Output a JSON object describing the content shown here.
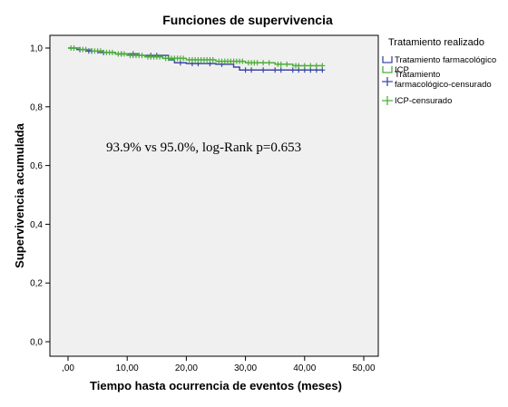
{
  "chart_data": {
    "type": "line",
    "title": "Funciones de supervivencia",
    "xlabel": "Tiempo hasta ocurrencia de eventos (meses)",
    "ylabel": "Supervivencia acumulada",
    "xlim": [
      0,
      50
    ],
    "ylim": [
      0,
      1.05
    ],
    "x_ticks": [
      ",00",
      "10,00",
      "20,00",
      "30,00",
      "40,00",
      "50,00"
    ],
    "x_tick_values": [
      0,
      10,
      20,
      30,
      40,
      50
    ],
    "y_ticks": [
      "0,0",
      "0,2",
      "0,4",
      "0,6",
      "0,8",
      "1,0"
    ],
    "y_tick_values": [
      0,
      0.2,
      0.4,
      0.6,
      0.8,
      1.0
    ],
    "annotation": "93.9% vs 95.0%, log-Rank p=0.653",
    "legend": {
      "title": "Tratamiento realizado",
      "placement": "right",
      "entries": [
        {
          "label": "Tratamiento farmacológico",
          "kind": "line",
          "color": "#3f48a6"
        },
        {
          "label": "ICP",
          "kind": "line",
          "color": "#4caf3a"
        },
        {
          "label": "Tratamiento\nfarmacológico-censurado",
          "kind": "censor",
          "color": "#3f48a6"
        },
        {
          "label": "ICP-censurado",
          "kind": "censor",
          "color": "#4caf3a"
        }
      ]
    },
    "plot_background": "#f0f0f0",
    "series": [
      {
        "name": "Tratamiento farmacológico",
        "color": "#3f48a6",
        "steps": [
          [
            0,
            1.0
          ],
          [
            1.5,
            0.995
          ],
          [
            3,
            0.99
          ],
          [
            5,
            0.985
          ],
          [
            8,
            0.98
          ],
          [
            12,
            0.975
          ],
          [
            17,
            0.96
          ],
          [
            18,
            0.95
          ],
          [
            20,
            0.947
          ],
          [
            25,
            0.945
          ],
          [
            28,
            0.935
          ],
          [
            29,
            0.925
          ],
          [
            43,
            0.925
          ]
        ],
        "censored": [
          [
            2,
            0.995
          ],
          [
            3.5,
            0.99
          ],
          [
            4,
            0.99
          ],
          [
            6,
            0.985
          ],
          [
            9,
            0.98
          ],
          [
            11,
            0.98
          ],
          [
            14,
            0.975
          ],
          [
            15,
            0.975
          ],
          [
            19,
            0.95
          ],
          [
            21,
            0.947
          ],
          [
            22,
            0.947
          ],
          [
            24,
            0.947
          ],
          [
            26,
            0.945
          ],
          [
            30,
            0.925
          ],
          [
            31,
            0.925
          ],
          [
            33,
            0.925
          ],
          [
            35,
            0.925
          ],
          [
            36,
            0.925
          ],
          [
            38,
            0.925
          ],
          [
            39,
            0.925
          ],
          [
            40,
            0.925
          ],
          [
            41,
            0.925
          ],
          [
            42,
            0.925
          ],
          [
            43,
            0.925
          ]
        ]
      },
      {
        "name": "ICP",
        "color": "#4caf3a",
        "steps": [
          [
            0,
            1.0
          ],
          [
            2,
            0.995
          ],
          [
            4,
            0.99
          ],
          [
            6,
            0.985
          ],
          [
            8,
            0.98
          ],
          [
            10,
            0.975
          ],
          [
            13,
            0.97
          ],
          [
            16,
            0.965
          ],
          [
            20,
            0.96
          ],
          [
            25,
            0.955
          ],
          [
            30,
            0.95
          ],
          [
            35,
            0.945
          ],
          [
            38,
            0.94
          ],
          [
            43,
            0.94
          ]
        ],
        "censored": [
          [
            0.5,
            1.0
          ],
          [
            1,
            1.0
          ],
          [
            2.5,
            0.995
          ],
          [
            3,
            0.995
          ],
          [
            4.5,
            0.99
          ],
          [
            5,
            0.99
          ],
          [
            5.5,
            0.99
          ],
          [
            6.5,
            0.985
          ],
          [
            7,
            0.985
          ],
          [
            7.5,
            0.985
          ],
          [
            8.5,
            0.98
          ],
          [
            9,
            0.98
          ],
          [
            9.5,
            0.98
          ],
          [
            10.5,
            0.975
          ],
          [
            11,
            0.975
          ],
          [
            11.5,
            0.975
          ],
          [
            12,
            0.975
          ],
          [
            12.5,
            0.975
          ],
          [
            13.5,
            0.97
          ],
          [
            14,
            0.97
          ],
          [
            14.5,
            0.97
          ],
          [
            15,
            0.97
          ],
          [
            15.5,
            0.97
          ],
          [
            16.5,
            0.965
          ],
          [
            17,
            0.965
          ],
          [
            17.5,
            0.965
          ],
          [
            18,
            0.965
          ],
          [
            18.5,
            0.965
          ],
          [
            19,
            0.965
          ],
          [
            19.5,
            0.965
          ],
          [
            20.5,
            0.96
          ],
          [
            21,
            0.96
          ],
          [
            21.5,
            0.96
          ],
          [
            22,
            0.96
          ],
          [
            22.5,
            0.96
          ],
          [
            23,
            0.96
          ],
          [
            23.5,
            0.96
          ],
          [
            24,
            0.96
          ],
          [
            24.5,
            0.96
          ],
          [
            25.5,
            0.955
          ],
          [
            26,
            0.955
          ],
          [
            26.5,
            0.955
          ],
          [
            27,
            0.955
          ],
          [
            27.5,
            0.955
          ],
          [
            28,
            0.955
          ],
          [
            28.5,
            0.955
          ],
          [
            29,
            0.955
          ],
          [
            29.5,
            0.955
          ],
          [
            30.5,
            0.95
          ],
          [
            31,
            0.95
          ],
          [
            31.5,
            0.95
          ],
          [
            32,
            0.95
          ],
          [
            33,
            0.95
          ],
          [
            34,
            0.95
          ],
          [
            35.5,
            0.945
          ],
          [
            36,
            0.945
          ],
          [
            37,
            0.945
          ],
          [
            38.5,
            0.94
          ],
          [
            39,
            0.94
          ],
          [
            40,
            0.94
          ],
          [
            41,
            0.94
          ],
          [
            42,
            0.94
          ],
          [
            43,
            0.94
          ]
        ]
      }
    ]
  }
}
